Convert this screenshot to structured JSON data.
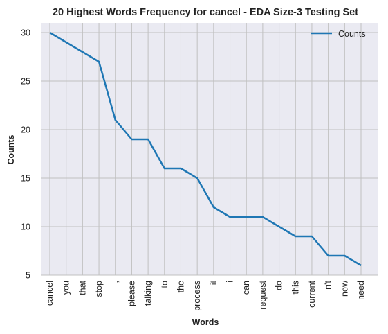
{
  "chart_data": {
    "type": "line",
    "title": "20 Highest Words Frequency for cancel - EDA Size-3 Testing Set",
    "xlabel": "Words",
    "ylabel": "Counts",
    "categories": [
      "cancel",
      "you",
      "that",
      "stop",
      ",",
      "please",
      "talking",
      "to",
      "the",
      "process",
      "it",
      "i",
      "can",
      "request",
      "do",
      "this",
      "current",
      "n't",
      "now",
      "need"
    ],
    "series": [
      {
        "name": "Counts",
        "values": [
          30,
          29,
          28,
          27,
          21,
          19,
          19,
          16,
          16,
          15,
          12,
          11,
          11,
          11,
          10,
          9,
          9,
          7,
          7,
          6
        ]
      }
    ],
    "ylim": [
      5,
      31
    ],
    "yticks": [
      5,
      10,
      15,
      20,
      25,
      30
    ],
    "grid": true,
    "legend_position": "top-right",
    "colors": {
      "series": "#1f77b4",
      "plot_bg": "#eaeaf2",
      "grid": "#c0c0c0"
    }
  }
}
